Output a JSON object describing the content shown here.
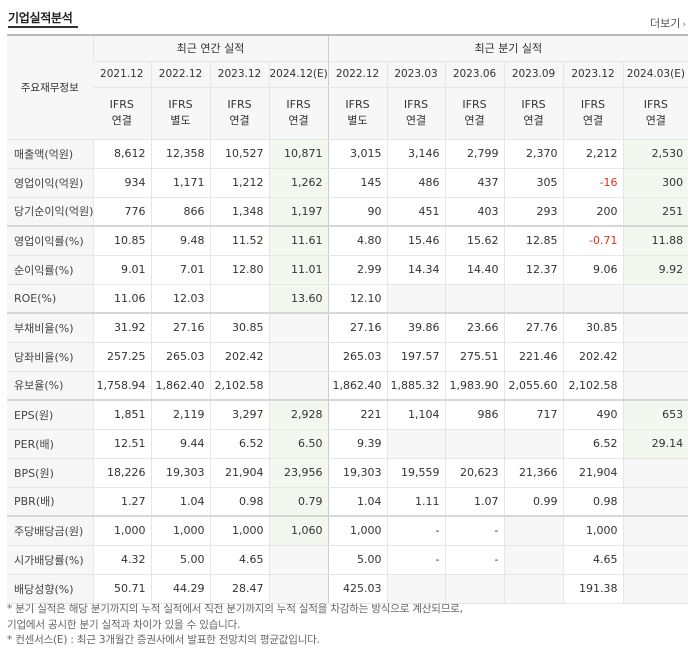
{
  "header": {
    "title": "기업실적분석",
    "more_label": "더보기"
  },
  "table": {
    "label_header": "주요재무정보",
    "group_annual": "최근 연간 실적",
    "group_quarter": "최근 분기 실적",
    "periods": [
      "2021.12",
      "2022.12",
      "2023.12",
      "2024.12(E)",
      "2022.12",
      "2023.03",
      "2023.06",
      "2023.09",
      "2023.12",
      "2024.03(E)"
    ],
    "basis": [
      [
        "IFRS",
        "연결"
      ],
      [
        "IFRS",
        "별도"
      ],
      [
        "IFRS",
        "연결"
      ],
      [
        "IFRS",
        "연결"
      ],
      [
        "IFRS",
        "별도"
      ],
      [
        "IFRS",
        "연결"
      ],
      [
        "IFRS",
        "연결"
      ],
      [
        "IFRS",
        "연결"
      ],
      [
        "IFRS",
        "연결"
      ],
      [
        "IFRS",
        "연결"
      ]
    ],
    "rows": [
      {
        "label": "매출액(억원)",
        "values": [
          "8,612",
          "12,358",
          "10,527",
          "10,871",
          "3,015",
          "3,146",
          "2,799",
          "2,370",
          "2,212",
          "2,530"
        ]
      },
      {
        "label": "영업이익(억원)",
        "values": [
          "934",
          "1,171",
          "1,212",
          "1,262",
          "145",
          "486",
          "437",
          "305",
          "-16",
          "300"
        ]
      },
      {
        "label": "당기순이익(억원)",
        "values": [
          "776",
          "866",
          "1,348",
          "1,197",
          "90",
          "451",
          "403",
          "293",
          "200",
          "251"
        ]
      },
      {
        "label": "영업이익률(%)",
        "values": [
          "10.85",
          "9.48",
          "11.52",
          "11.61",
          "4.80",
          "15.46",
          "15.62",
          "12.85",
          "-0.71",
          "11.88"
        ]
      },
      {
        "label": "순이익률(%)",
        "values": [
          "9.01",
          "7.01",
          "12.80",
          "11.01",
          "2.99",
          "14.34",
          "14.40",
          "12.37",
          "9.06",
          "9.92"
        ]
      },
      {
        "label": "ROE(%)",
        "values": [
          "11.06",
          "12.03",
          "",
          "13.60",
          "12.10",
          "",
          "",
          "",
          "",
          ""
        ]
      },
      {
        "label": "부채비율(%)",
        "values": [
          "31.92",
          "27.16",
          "30.85",
          "",
          "27.16",
          "39.86",
          "23.66",
          "27.76",
          "30.85",
          ""
        ]
      },
      {
        "label": "당좌비율(%)",
        "values": [
          "257.25",
          "265.03",
          "202.42",
          "",
          "265.03",
          "197.57",
          "275.51",
          "221.46",
          "202.42",
          ""
        ]
      },
      {
        "label": "유보율(%)",
        "values": [
          "1,758.94",
          "1,862.40",
          "2,102.58",
          "",
          "1,862.40",
          "1,885.32",
          "1,983.90",
          "2,055.60",
          "2,102.58",
          ""
        ]
      },
      {
        "label": "EPS(원)",
        "values": [
          "1,851",
          "2,119",
          "3,297",
          "2,928",
          "221",
          "1,104",
          "986",
          "717",
          "490",
          "653"
        ]
      },
      {
        "label": "PER(배)",
        "values": [
          "12.51",
          "9.44",
          "6.52",
          "6.50",
          "9.39",
          "",
          "",
          "",
          "6.52",
          "29.14"
        ]
      },
      {
        "label": "BPS(원)",
        "values": [
          "18,226",
          "19,303",
          "21,904",
          "23,956",
          "19,303",
          "19,559",
          "20,623",
          "21,366",
          "21,904",
          ""
        ]
      },
      {
        "label": "PBR(배)",
        "values": [
          "1.27",
          "1.04",
          "0.98",
          "0.79",
          "1.04",
          "1.11",
          "1.07",
          "0.99",
          "0.98",
          ""
        ]
      },
      {
        "label": "주당배당금(원)",
        "values": [
          "1,000",
          "1,000",
          "1,000",
          "1,060",
          "1,000",
          "-",
          "-",
          "",
          "1,000",
          ""
        ]
      },
      {
        "label": "시가배당률(%)",
        "values": [
          "4.32",
          "5.00",
          "4.65",
          "",
          "5.00",
          "-",
          "-",
          "",
          "4.65",
          ""
        ]
      },
      {
        "label": "배당성향(%)",
        "values": [
          "50.71",
          "44.29",
          "28.47",
          "",
          "425.03",
          "",
          "",
          "",
          "191.38",
          ""
        ]
      }
    ],
    "negative_color": "#e0301e",
    "ifrs_color": "#e0602a",
    "estimate_bg": "#f2f8ed"
  },
  "notes": {
    "line1": "* 분기 실적은 해당 분기까지의 누적 실적에서 직전 분기까지의 누적 실적을 차감하는 방식으로 계산되므로,",
    "line2": "   기업에서 공시한 분기 실적과 차이가 있을 수 있습니다.",
    "line3": "* 컨센서스(E) : 최근 3개월간 증권사에서 발표한 전망치의 평균값입니다."
  }
}
